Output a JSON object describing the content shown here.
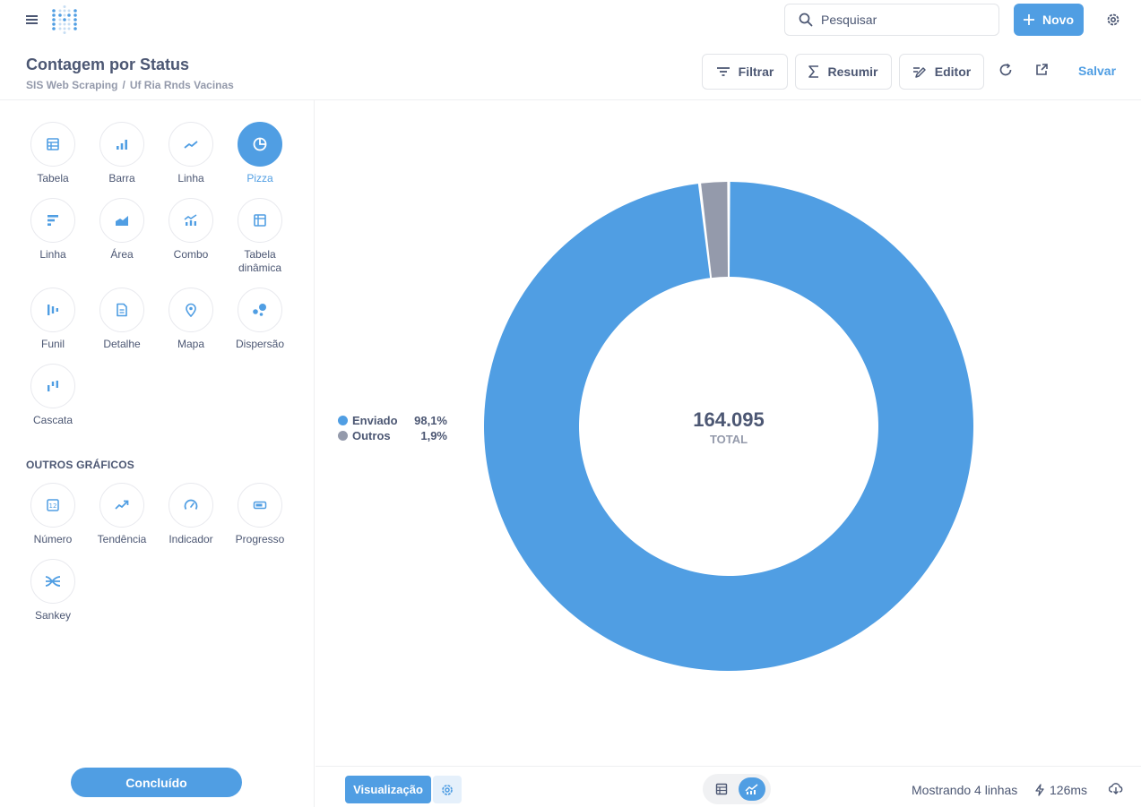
{
  "topbar": {
    "search_placeholder": "Pesquisar",
    "new_label": "Novo"
  },
  "header": {
    "title": "Contagem por Status",
    "breadcrumb": [
      "SIS Web Scraping",
      "Uf Ria Rnds Vacinas"
    ],
    "breadcrumb_sep": "/",
    "filter_label": "Filtrar",
    "summarize_label": "Resumir",
    "editor_label": "Editor",
    "save_label": "Salvar"
  },
  "sidebar": {
    "types": [
      {
        "label": "Tabela",
        "icon": "table-icon"
      },
      {
        "label": "Barra",
        "icon": "bar-icon"
      },
      {
        "label": "Linha",
        "icon": "line-icon"
      },
      {
        "label": "Pizza",
        "icon": "pie-icon",
        "active": true
      },
      {
        "label": "Linha",
        "icon": "row-icon"
      },
      {
        "label": "Área",
        "icon": "area-icon"
      },
      {
        "label": "Combo",
        "icon": "combo-icon"
      },
      {
        "label": "Tabela dinâmica",
        "icon": "pivot-icon"
      },
      {
        "label": "Funil",
        "icon": "funnel-icon"
      },
      {
        "label": "Detalhe",
        "icon": "detail-icon"
      },
      {
        "label": "Mapa",
        "icon": "map-icon"
      },
      {
        "label": "Dispersão",
        "icon": "scatter-icon"
      },
      {
        "label": "Cascata",
        "icon": "waterfall-icon"
      }
    ],
    "other_title": "OUTROS GRÁFICOS",
    "other_types": [
      {
        "label": "Número",
        "icon": "number-icon"
      },
      {
        "label": "Tendência",
        "icon": "trend-icon"
      },
      {
        "label": "Indicador",
        "icon": "gauge-icon"
      },
      {
        "label": "Progresso",
        "icon": "progress-icon"
      },
      {
        "label": "Sankey",
        "icon": "sankey-icon"
      }
    ],
    "done_label": "Concluído"
  },
  "chart_data": {
    "type": "pie",
    "donut": true,
    "total_value": "164.095",
    "total_label": "TOTAL",
    "slices": [
      {
        "name": "Enviado",
        "percent_label": "98,1%",
        "fraction": 0.981,
        "color": "#509ee3"
      },
      {
        "name": "Outros",
        "percent_label": "1,9%",
        "fraction": 0.019,
        "color": "#949aab"
      }
    ],
    "legend_position": "left"
  },
  "footer": {
    "viz_label": "Visualização",
    "rows_label": "Mostrando 4 linhas",
    "time_label": "126ms"
  },
  "colors": {
    "accent": "#509ee3",
    "text": "#4c5773",
    "muted": "#949aab"
  }
}
